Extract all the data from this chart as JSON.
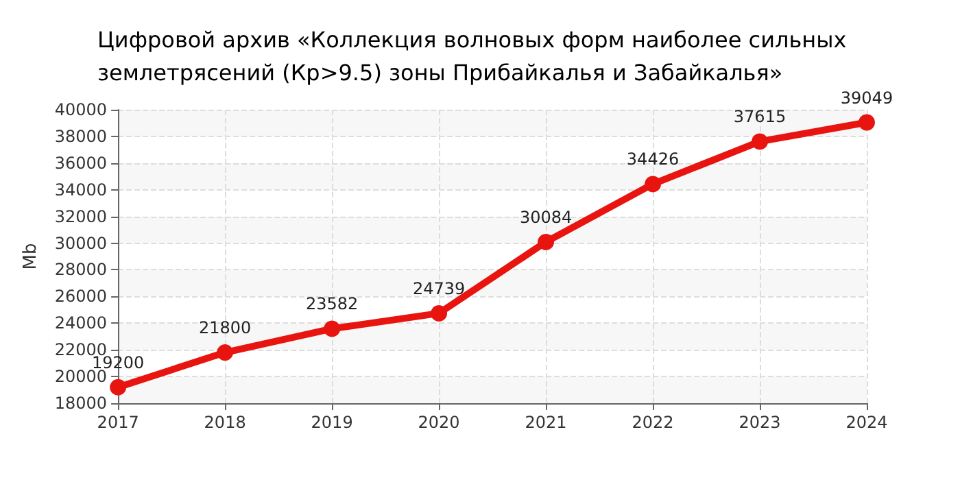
{
  "chart_data": {
    "type": "line",
    "title": "Цифровой архив «Коллекция волновых форм наиболее сильных\nземлетрясений (Кр>9.5) зоны Прибайкалья и Забайкалья»",
    "ylabel": "Mb",
    "categories": [
      "2017",
      "2018",
      "2019",
      "2020",
      "2021",
      "2022",
      "2023",
      "2024"
    ],
    "series": [
      {
        "color": "#e8140f",
        "values": [
          19200,
          21800,
          23582,
          24739,
          30084,
          34426,
          37615,
          39049
        ]
      }
    ],
    "ylim": [
      18000,
      40000
    ],
    "yticks": [
      18000,
      20000,
      22000,
      24000,
      26000,
      28000,
      30000,
      32000,
      34000,
      36000,
      38000,
      40000
    ],
    "grid": true,
    "marker": "circle",
    "line_style": "solid",
    "data_labels": true
  }
}
